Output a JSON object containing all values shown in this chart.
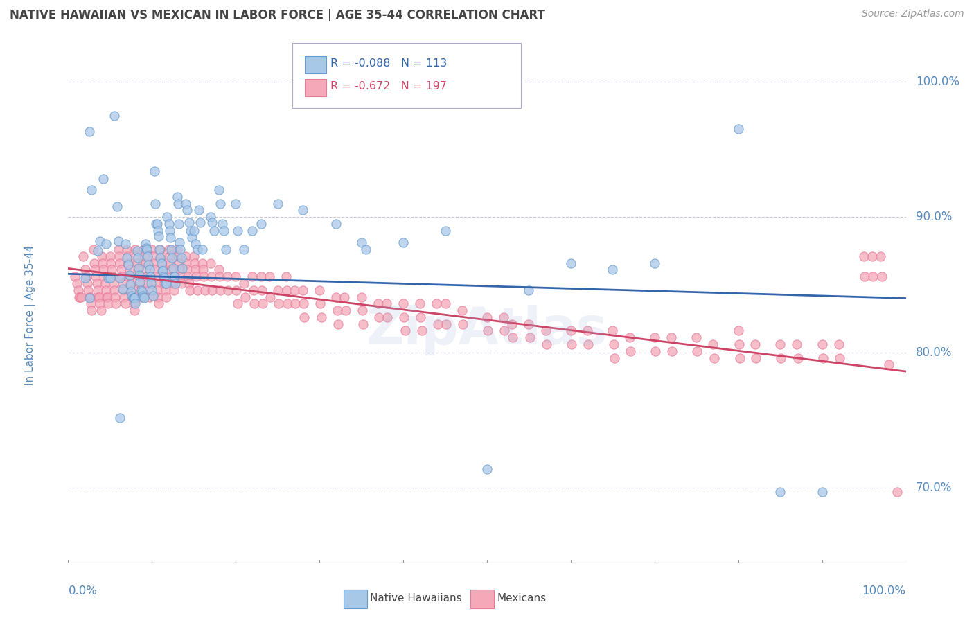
{
  "title": "NATIVE HAWAIIAN VS MEXICAN IN LABOR FORCE | AGE 35-44 CORRELATION CHART",
  "source": "Source: ZipAtlas.com",
  "ylabel": "In Labor Force | Age 35-44",
  "xlim": [
    0.0,
    1.0
  ],
  "ylim": [
    0.645,
    1.01
  ],
  "yticks": [
    0.7,
    0.8,
    0.9,
    1.0
  ],
  "ytick_labels": [
    "70.0%",
    "80.0%",
    "90.0%",
    "100.0%"
  ],
  "xtick_labels": [
    "0.0%",
    "100.0%"
  ],
  "blue_R": -0.088,
  "blue_N": 113,
  "pink_R": -0.672,
  "pink_N": 197,
  "blue_color": "#a8c8e8",
  "pink_color": "#f4a8b8",
  "blue_edge_color": "#6699cc",
  "pink_edge_color": "#e87898",
  "blue_line_color": "#3366aa",
  "pink_line_color": "#cc4466",
  "background_color": "#ffffff",
  "grid_color": "#c8c8d8",
  "title_color": "#444444",
  "axis_label_color": "#5588bb",
  "watermark": "ZipAtlas",
  "blue_line_y0": 0.858,
  "blue_line_y1": 0.84,
  "pink_line_y0": 0.862,
  "pink_line_y1": 0.786,
  "blue_scatter": [
    [
      0.02,
      0.855
    ],
    [
      0.025,
      0.84
    ],
    [
      0.025,
      0.963
    ],
    [
      0.028,
      0.92
    ],
    [
      0.035,
      0.875
    ],
    [
      0.038,
      0.882
    ],
    [
      0.042,
      0.928
    ],
    [
      0.045,
      0.88
    ],
    [
      0.048,
      0.855
    ],
    [
      0.05,
      0.855
    ],
    [
      0.055,
      0.975
    ],
    [
      0.058,
      0.908
    ],
    [
      0.06,
      0.882
    ],
    [
      0.062,
      0.855
    ],
    [
      0.065,
      0.847
    ],
    [
      0.062,
      0.752
    ],
    [
      0.068,
      0.88
    ],
    [
      0.07,
      0.87
    ],
    [
      0.072,
      0.865
    ],
    [
      0.073,
      0.857
    ],
    [
      0.074,
      0.85
    ],
    [
      0.075,
      0.845
    ],
    [
      0.076,
      0.842
    ],
    [
      0.077,
      0.84
    ],
    [
      0.078,
      0.84
    ],
    [
      0.079,
      0.84
    ],
    [
      0.08,
      0.836
    ],
    [
      0.082,
      0.875
    ],
    [
      0.083,
      0.87
    ],
    [
      0.084,
      0.862
    ],
    [
      0.085,
      0.857
    ],
    [
      0.086,
      0.852
    ],
    [
      0.087,
      0.846
    ],
    [
      0.088,
      0.845
    ],
    [
      0.089,
      0.842
    ],
    [
      0.09,
      0.841
    ],
    [
      0.091,
      0.84
    ],
    [
      0.092,
      0.88
    ],
    [
      0.093,
      0.877
    ],
    [
      0.094,
      0.876
    ],
    [
      0.095,
      0.871
    ],
    [
      0.096,
      0.865
    ],
    [
      0.097,
      0.861
    ],
    [
      0.098,
      0.856
    ],
    [
      0.099,
      0.851
    ],
    [
      0.1,
      0.846
    ],
    [
      0.101,
      0.842
    ],
    [
      0.103,
      0.934
    ],
    [
      0.104,
      0.91
    ],
    [
      0.105,
      0.895
    ],
    [
      0.106,
      0.895
    ],
    [
      0.107,
      0.89
    ],
    [
      0.108,
      0.886
    ],
    [
      0.109,
      0.876
    ],
    [
      0.11,
      0.87
    ],
    [
      0.111,
      0.866
    ],
    [
      0.112,
      0.86
    ],
    [
      0.113,
      0.86
    ],
    [
      0.114,
      0.856
    ],
    [
      0.115,
      0.855
    ],
    [
      0.116,
      0.851
    ],
    [
      0.117,
      0.851
    ],
    [
      0.118,
      0.9
    ],
    [
      0.12,
      0.895
    ],
    [
      0.121,
      0.89
    ],
    [
      0.122,
      0.885
    ],
    [
      0.123,
      0.876
    ],
    [
      0.124,
      0.87
    ],
    [
      0.125,
      0.862
    ],
    [
      0.126,
      0.856
    ],
    [
      0.127,
      0.856
    ],
    [
      0.128,
      0.851
    ],
    [
      0.13,
      0.915
    ],
    [
      0.131,
      0.91
    ],
    [
      0.132,
      0.895
    ],
    [
      0.133,
      0.881
    ],
    [
      0.134,
      0.876
    ],
    [
      0.135,
      0.87
    ],
    [
      0.136,
      0.862
    ],
    [
      0.14,
      0.91
    ],
    [
      0.142,
      0.905
    ],
    [
      0.144,
      0.896
    ],
    [
      0.146,
      0.89
    ],
    [
      0.148,
      0.885
    ],
    [
      0.15,
      0.89
    ],
    [
      0.152,
      0.88
    ],
    [
      0.154,
      0.876
    ],
    [
      0.156,
      0.905
    ],
    [
      0.158,
      0.896
    ],
    [
      0.16,
      0.876
    ],
    [
      0.17,
      0.9
    ],
    [
      0.172,
      0.896
    ],
    [
      0.174,
      0.89
    ],
    [
      0.18,
      0.92
    ],
    [
      0.182,
      0.91
    ],
    [
      0.184,
      0.895
    ],
    [
      0.186,
      0.89
    ],
    [
      0.188,
      0.876
    ],
    [
      0.2,
      0.91
    ],
    [
      0.202,
      0.89
    ],
    [
      0.21,
      0.876
    ],
    [
      0.22,
      0.89
    ],
    [
      0.23,
      0.895
    ],
    [
      0.25,
      0.91
    ],
    [
      0.28,
      0.905
    ],
    [
      0.32,
      0.895
    ],
    [
      0.35,
      0.881
    ],
    [
      0.355,
      0.876
    ],
    [
      0.4,
      0.881
    ],
    [
      0.45,
      0.89
    ],
    [
      0.5,
      0.714
    ],
    [
      0.55,
      0.846
    ],
    [
      0.6,
      0.866
    ],
    [
      0.65,
      0.861
    ],
    [
      0.7,
      0.866
    ],
    [
      0.8,
      0.965
    ],
    [
      0.85,
      0.697
    ],
    [
      0.9,
      0.697
    ]
  ],
  "pink_scatter": [
    [
      0.008,
      0.856
    ],
    [
      0.01,
      0.851
    ],
    [
      0.012,
      0.846
    ],
    [
      0.013,
      0.841
    ],
    [
      0.014,
      0.841
    ],
    [
      0.015,
      0.841
    ],
    [
      0.018,
      0.871
    ],
    [
      0.02,
      0.861
    ],
    [
      0.022,
      0.856
    ],
    [
      0.023,
      0.851
    ],
    [
      0.024,
      0.846
    ],
    [
      0.025,
      0.841
    ],
    [
      0.026,
      0.841
    ],
    [
      0.027,
      0.836
    ],
    [
      0.028,
      0.831
    ],
    [
      0.03,
      0.876
    ],
    [
      0.031,
      0.866
    ],
    [
      0.032,
      0.861
    ],
    [
      0.033,
      0.856
    ],
    [
      0.034,
      0.851
    ],
    [
      0.035,
      0.846
    ],
    [
      0.036,
      0.841
    ],
    [
      0.037,
      0.841
    ],
    [
      0.038,
      0.836
    ],
    [
      0.039,
      0.831
    ],
    [
      0.04,
      0.871
    ],
    [
      0.041,
      0.866
    ],
    [
      0.042,
      0.861
    ],
    [
      0.043,
      0.856
    ],
    [
      0.044,
      0.851
    ],
    [
      0.045,
      0.846
    ],
    [
      0.046,
      0.841
    ],
    [
      0.047,
      0.841
    ],
    [
      0.048,
      0.836
    ],
    [
      0.05,
      0.871
    ],
    [
      0.051,
      0.866
    ],
    [
      0.052,
      0.861
    ],
    [
      0.053,
      0.856
    ],
    [
      0.054,
      0.851
    ],
    [
      0.055,
      0.846
    ],
    [
      0.056,
      0.841
    ],
    [
      0.057,
      0.836
    ],
    [
      0.06,
      0.876
    ],
    [
      0.061,
      0.871
    ],
    [
      0.062,
      0.866
    ],
    [
      0.063,
      0.861
    ],
    [
      0.064,
      0.856
    ],
    [
      0.065,
      0.851
    ],
    [
      0.066,
      0.846
    ],
    [
      0.067,
      0.841
    ],
    [
      0.068,
      0.836
    ],
    [
      0.07,
      0.876
    ],
    [
      0.071,
      0.871
    ],
    [
      0.072,
      0.866
    ],
    [
      0.073,
      0.861
    ],
    [
      0.074,
      0.856
    ],
    [
      0.075,
      0.851
    ],
    [
      0.076,
      0.846
    ],
    [
      0.077,
      0.841
    ],
    [
      0.078,
      0.836
    ],
    [
      0.079,
      0.831
    ],
    [
      0.08,
      0.876
    ],
    [
      0.081,
      0.871
    ],
    [
      0.082,
      0.866
    ],
    [
      0.083,
      0.861
    ],
    [
      0.084,
      0.856
    ],
    [
      0.085,
      0.851
    ],
    [
      0.086,
      0.846
    ],
    [
      0.087,
      0.841
    ],
    [
      0.09,
      0.876
    ],
    [
      0.091,
      0.871
    ],
    [
      0.092,
      0.866
    ],
    [
      0.093,
      0.861
    ],
    [
      0.094,
      0.856
    ],
    [
      0.095,
      0.851
    ],
    [
      0.096,
      0.846
    ],
    [
      0.097,
      0.841
    ],
    [
      0.1,
      0.876
    ],
    [
      0.101,
      0.871
    ],
    [
      0.102,
      0.866
    ],
    [
      0.103,
      0.861
    ],
    [
      0.104,
      0.856
    ],
    [
      0.105,
      0.851
    ],
    [
      0.106,
      0.846
    ],
    [
      0.107,
      0.841
    ],
    [
      0.108,
      0.836
    ],
    [
      0.11,
      0.876
    ],
    [
      0.111,
      0.871
    ],
    [
      0.112,
      0.866
    ],
    [
      0.113,
      0.861
    ],
    [
      0.114,
      0.856
    ],
    [
      0.115,
      0.851
    ],
    [
      0.116,
      0.846
    ],
    [
      0.117,
      0.841
    ],
    [
      0.12,
      0.876
    ],
    [
      0.121,
      0.871
    ],
    [
      0.122,
      0.866
    ],
    [
      0.123,
      0.861
    ],
    [
      0.124,
      0.856
    ],
    [
      0.125,
      0.851
    ],
    [
      0.126,
      0.846
    ],
    [
      0.13,
      0.876
    ],
    [
      0.131,
      0.871
    ],
    [
      0.132,
      0.866
    ],
    [
      0.133,
      0.861
    ],
    [
      0.134,
      0.856
    ],
    [
      0.135,
      0.851
    ],
    [
      0.14,
      0.871
    ],
    [
      0.141,
      0.866
    ],
    [
      0.142,
      0.861
    ],
    [
      0.143,
      0.856
    ],
    [
      0.144,
      0.851
    ],
    [
      0.145,
      0.846
    ],
    [
      0.15,
      0.871
    ],
    [
      0.151,
      0.866
    ],
    [
      0.152,
      0.861
    ],
    [
      0.153,
      0.856
    ],
    [
      0.154,
      0.846
    ],
    [
      0.16,
      0.866
    ],
    [
      0.161,
      0.861
    ],
    [
      0.162,
      0.856
    ],
    [
      0.163,
      0.846
    ],
    [
      0.17,
      0.866
    ],
    [
      0.171,
      0.856
    ],
    [
      0.172,
      0.846
    ],
    [
      0.18,
      0.861
    ],
    [
      0.181,
      0.856
    ],
    [
      0.182,
      0.846
    ],
    [
      0.19,
      0.856
    ],
    [
      0.191,
      0.846
    ],
    [
      0.2,
      0.856
    ],
    [
      0.201,
      0.846
    ],
    [
      0.202,
      0.836
    ],
    [
      0.21,
      0.851
    ],
    [
      0.211,
      0.841
    ],
    [
      0.22,
      0.856
    ],
    [
      0.221,
      0.846
    ],
    [
      0.222,
      0.836
    ],
    [
      0.23,
      0.856
    ],
    [
      0.231,
      0.846
    ],
    [
      0.232,
      0.836
    ],
    [
      0.24,
      0.856
    ],
    [
      0.241,
      0.841
    ],
    [
      0.25,
      0.846
    ],
    [
      0.251,
      0.836
    ],
    [
      0.26,
      0.856
    ],
    [
      0.261,
      0.846
    ],
    [
      0.262,
      0.836
    ],
    [
      0.27,
      0.846
    ],
    [
      0.271,
      0.836
    ],
    [
      0.28,
      0.846
    ],
    [
      0.281,
      0.836
    ],
    [
      0.282,
      0.826
    ],
    [
      0.3,
      0.846
    ],
    [
      0.301,
      0.836
    ],
    [
      0.302,
      0.826
    ],
    [
      0.32,
      0.841
    ],
    [
      0.321,
      0.831
    ],
    [
      0.322,
      0.821
    ],
    [
      0.33,
      0.841
    ],
    [
      0.331,
      0.831
    ],
    [
      0.35,
      0.841
    ],
    [
      0.351,
      0.831
    ],
    [
      0.352,
      0.821
    ],
    [
      0.37,
      0.836
    ],
    [
      0.371,
      0.826
    ],
    [
      0.38,
      0.836
    ],
    [
      0.381,
      0.826
    ],
    [
      0.4,
      0.836
    ],
    [
      0.401,
      0.826
    ],
    [
      0.402,
      0.816
    ],
    [
      0.42,
      0.836
    ],
    [
      0.421,
      0.826
    ],
    [
      0.422,
      0.816
    ],
    [
      0.44,
      0.836
    ],
    [
      0.441,
      0.821
    ],
    [
      0.45,
      0.836
    ],
    [
      0.451,
      0.821
    ],
    [
      0.47,
      0.831
    ],
    [
      0.471,
      0.821
    ],
    [
      0.5,
      0.826
    ],
    [
      0.501,
      0.816
    ],
    [
      0.52,
      0.826
    ],
    [
      0.521,
      0.816
    ],
    [
      0.53,
      0.821
    ],
    [
      0.531,
      0.811
    ],
    [
      0.55,
      0.821
    ],
    [
      0.551,
      0.811
    ],
    [
      0.57,
      0.816
    ],
    [
      0.571,
      0.806
    ],
    [
      0.6,
      0.816
    ],
    [
      0.601,
      0.806
    ],
    [
      0.62,
      0.816
    ],
    [
      0.621,
      0.806
    ],
    [
      0.65,
      0.816
    ],
    [
      0.651,
      0.806
    ],
    [
      0.652,
      0.796
    ],
    [
      0.67,
      0.811
    ],
    [
      0.671,
      0.801
    ],
    [
      0.7,
      0.811
    ],
    [
      0.701,
      0.801
    ],
    [
      0.72,
      0.811
    ],
    [
      0.721,
      0.801
    ],
    [
      0.75,
      0.811
    ],
    [
      0.751,
      0.801
    ],
    [
      0.77,
      0.806
    ],
    [
      0.771,
      0.796
    ],
    [
      0.8,
      0.816
    ],
    [
      0.801,
      0.806
    ],
    [
      0.802,
      0.796
    ],
    [
      0.82,
      0.806
    ],
    [
      0.821,
      0.796
    ],
    [
      0.85,
      0.806
    ],
    [
      0.851,
      0.796
    ],
    [
      0.87,
      0.806
    ],
    [
      0.871,
      0.796
    ],
    [
      0.9,
      0.806
    ],
    [
      0.901,
      0.796
    ],
    [
      0.92,
      0.806
    ],
    [
      0.921,
      0.796
    ],
    [
      0.95,
      0.871
    ],
    [
      0.951,
      0.856
    ],
    [
      0.96,
      0.871
    ],
    [
      0.961,
      0.856
    ],
    [
      0.97,
      0.871
    ],
    [
      0.971,
      0.856
    ],
    [
      0.98,
      0.791
    ],
    [
      0.99,
      0.697
    ]
  ]
}
